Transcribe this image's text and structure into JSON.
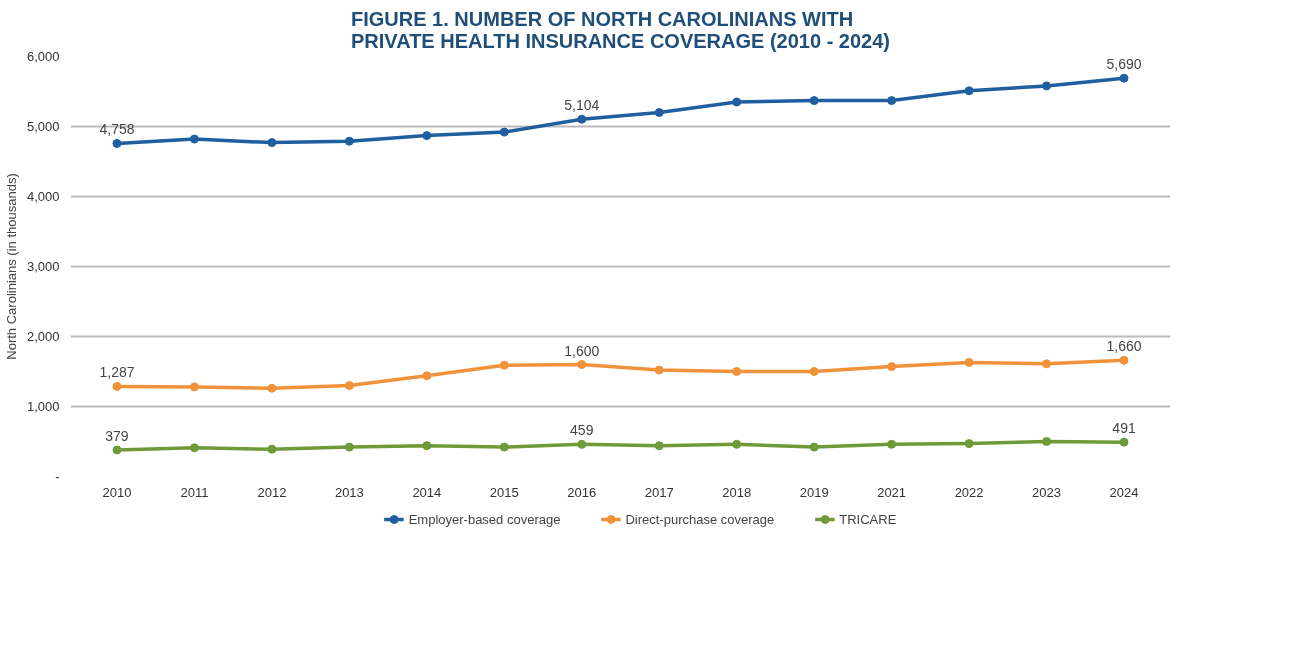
{
  "chart_data": {
    "type": "line",
    "title": "FIGURE 1. NUMBER OF NORTH CAROLINIANS WITH\nPRIVATE HEALTH INSURANCE COVERAGE (2010 - 2024)",
    "ylabel": "North Carolinians (in thousands)",
    "categories": [
      "2010",
      "2011",
      "2012",
      "2013",
      "2014",
      "2015",
      "2016",
      "2017",
      "2018",
      "2019",
      "2021",
      "2022",
      "2023",
      "2024"
    ],
    "ylim": [
      0,
      6000
    ],
    "yticks": [
      {
        "value": 0,
        "label": "-"
      },
      {
        "value": 1000,
        "label": "1,000"
      },
      {
        "value": 2000,
        "label": "2,000"
      },
      {
        "value": 3000,
        "label": "3,000"
      },
      {
        "value": 4000,
        "label": "4,000"
      },
      {
        "value": 5000,
        "label": "5,000"
      },
      {
        "value": 6000,
        "label": "6,000"
      }
    ],
    "grid": "y",
    "legend": "bottom",
    "marker": "circle",
    "line_style": "solid",
    "series": [
      {
        "name": "Employer-based coverage",
        "color": "#1f5fa0",
        "values": [
          4758,
          4820,
          4770,
          4790,
          4870,
          4920,
          5104,
          5200,
          5350,
          5370,
          5370,
          5510,
          5580,
          5690
        ],
        "value_labels": [
          "4,758",
          null,
          null,
          null,
          null,
          null,
          "5,104",
          null,
          null,
          null,
          null,
          null,
          null,
          "5,690"
        ]
      },
      {
        "name": "Direct-purchase coverage",
        "color": "#f0923a",
        "values": [
          1287,
          1280,
          1260,
          1300,
          1440,
          1590,
          1600,
          1520,
          1500,
          1500,
          1570,
          1630,
          1610,
          1660
        ],
        "value_labels": [
          "1,287",
          null,
          null,
          null,
          null,
          null,
          "1,600",
          null,
          null,
          null,
          null,
          null,
          null,
          "1,660"
        ]
      },
      {
        "name": "TRICARE",
        "color": "#6f9a3a",
        "values": [
          379,
          410,
          390,
          420,
          440,
          420,
          459,
          440,
          460,
          420,
          460,
          470,
          500,
          491
        ],
        "value_labels": [
          "379",
          null,
          null,
          null,
          null,
          null,
          "459",
          null,
          null,
          null,
          null,
          null,
          null,
          "491"
        ]
      }
    ]
  }
}
